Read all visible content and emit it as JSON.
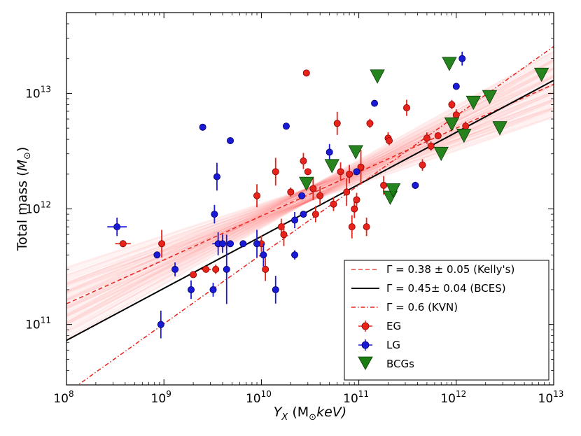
{
  "chart_data": {
    "type": "scatter",
    "xscale": "log",
    "yscale": "log",
    "xlim": [
      100000000.0,
      10000000000000.0
    ],
    "ylim": [
      30000000000.0,
      50000000000000.0
    ],
    "xlabel": "Y_X (M_sun keV)",
    "xlabel_parts": [
      "Y",
      "X",
      " (M",
      "⊙",
      "keV)"
    ],
    "ylabel": "Total mass (M_sun)",
    "ylabel_parts": [
      "Total mass (",
      "M",
      "⊙",
      ")"
    ],
    "x_ticks": [
      {
        "base": "10",
        "exp": "8",
        "value": 100000000.0
      },
      {
        "base": "10",
        "exp": "9",
        "value": 1000000000.0
      },
      {
        "base": "10",
        "exp": "10",
        "value": 10000000000.0
      },
      {
        "base": "10",
        "exp": "11",
        "value": 100000000000.0
      },
      {
        "base": "10",
        "exp": "12",
        "value": 1000000000000.0
      },
      {
        "base": "10",
        "exp": "13",
        "value": 10000000000000.0
      }
    ],
    "y_ticks": [
      {
        "base": "10",
        "exp": "11",
        "value": 100000000000.0
      },
      {
        "base": "10",
        "exp": "12",
        "value": 1000000000000.0
      },
      {
        "base": "10",
        "exp": "13",
        "value": 10000000000000.0
      }
    ],
    "fit_lines": [
      {
        "name": "Kelly's",
        "label": "Γ = 0.38 ± 0.05 (Kelly's)",
        "slope": 0.38,
        "y_at_x1e12": 5000000000000.0,
        "color": "#e8231b",
        "style": "dashed"
      },
      {
        "name": "BCES",
        "label": "Γ =  0.45± 0.04 (BCES)",
        "slope": 0.45,
        "y_at_x1e12": 4600000000000.0,
        "color": "#000000",
        "style": "solid"
      },
      {
        "name": "KVN",
        "label": "Γ =   0.6 (KVN)",
        "slope": 0.6,
        "y_at_x1e12": 6400000000000.0,
        "color": "#e8231b",
        "style": "dashdot"
      }
    ],
    "uncertainty_band": {
      "center_slope": 0.38,
      "center_y_at_x1e12": 5000000000000.0,
      "slope_spread": 0.05,
      "color": "#ff2a2a"
    },
    "series": [
      {
        "name": "EG",
        "marker": "circle",
        "color": "#e8231b",
        "points": [
          {
            "x": 380000000.0,
            "y": 500000000000.0,
            "yerr": 0.03,
            "xerr": 0.08
          },
          {
            "x": 950000000.0,
            "y": 500000000000.0,
            "yerr": 0.12,
            "xerr": 0.03
          },
          {
            "x": 2000000000.0,
            "y": 270000000000.0,
            "yerr": 0.0,
            "xerr": 0.0
          },
          {
            "x": 2700000000.0,
            "y": 300000000000.0,
            "yerr": 0.02,
            "xerr": 0.05
          },
          {
            "x": 3400000000.0,
            "y": 300000000000.0,
            "yerr": 0.04,
            "xerr": 0.0
          },
          {
            "x": 9000000000.0,
            "y": 1300000000000.0,
            "yerr": 0.1,
            "xerr": 0.0
          },
          {
            "x": 10000000000.0,
            "y": 500000000000.0,
            "yerr": 0.07,
            "xerr": 0.0
          },
          {
            "x": 11000000000.0,
            "y": 300000000000.0,
            "yerr": 0.1,
            "xerr": 0.0
          },
          {
            "x": 14000000000.0,
            "y": 2100000000000.0,
            "yerr": 0.12,
            "xerr": 0.0
          },
          {
            "x": 16000000000.0,
            "y": 700000000000.0,
            "yerr": 0.07,
            "xerr": 0.0
          },
          {
            "x": 17000000000.0,
            "y": 600000000000.0,
            "yerr": 0.1,
            "xerr": 0.0
          },
          {
            "x": 20000000000.0,
            "y": 1400000000000.0,
            "yerr": 0.04,
            "xerr": 0.0
          },
          {
            "x": 27000000000.0,
            "y": 2600000000000.0,
            "yerr": 0.07,
            "xerr": 0.0
          },
          {
            "x": 29000000000.0,
            "y": 15000000000000.0,
            "yerr": 0.0,
            "xerr": 0.0
          },
          {
            "x": 30000000000.0,
            "y": 2100000000000.0,
            "yerr": 0.0,
            "xerr": 0.0
          },
          {
            "x": 34000000000.0,
            "y": 1500000000000.0,
            "yerr": 0.1,
            "xerr": 0.0
          },
          {
            "x": 36000000000.0,
            "y": 900000000000.0,
            "yerr": 0.07,
            "xerr": 0.0
          },
          {
            "x": 40000000000.0,
            "y": 1300000000000.0,
            "yerr": 0.08,
            "xerr": 0.0
          },
          {
            "x": 55000000000.0,
            "y": 1100000000000.0,
            "yerr": 0.06,
            "xerr": 0.0
          },
          {
            "x": 60000000000.0,
            "y": 5500000000000.0,
            "yerr": 0.1,
            "xerr": 0.0
          },
          {
            "x": 65000000000.0,
            "y": 2100000000000.0,
            "yerr": 0.08,
            "xerr": 0.0
          },
          {
            "x": 75000000000.0,
            "y": 1400000000000.0,
            "yerr": 0.12,
            "xerr": 0.0
          },
          {
            "x": 80000000000.0,
            "y": 2000000000000.0,
            "yerr": 0.08,
            "xerr": 0.0
          },
          {
            "x": 85000000000.0,
            "y": 700000000000.0,
            "yerr": 0.1,
            "xerr": 0.0
          },
          {
            "x": 90000000000.0,
            "y": 1000000000000.0,
            "yerr": 0.08,
            "xerr": 0.0
          },
          {
            "x": 95000000000.0,
            "y": 1200000000000.0,
            "yerr": 0.06,
            "xerr": 0.0
          },
          {
            "x": 105000000000.0,
            "y": 2300000000000.0,
            "yerr": 0.15,
            "xerr": 0.0
          },
          {
            "x": 120000000000.0,
            "y": 700000000000.0,
            "yerr": 0.08,
            "xerr": 0.0
          },
          {
            "x": 130000000000.0,
            "y": 5500000000000.0,
            "yerr": 0.04,
            "xerr": 0.0
          },
          {
            "x": 180000000000.0,
            "y": 1600000000000.0,
            "yerr": 0.08,
            "xerr": 0.0
          },
          {
            "x": 200000000000.0,
            "y": 4100000000000.0,
            "yerr": 0.05,
            "xerr": 0.0
          },
          {
            "x": 205000000000.0,
            "y": 3900000000000.0,
            "yerr": 0.04,
            "xerr": 0.0
          },
          {
            "x": 310000000000.0,
            "y": 7500000000000.0,
            "yerr": 0.07,
            "xerr": 0.0
          },
          {
            "x": 450000000000.0,
            "y": 2400000000000.0,
            "yerr": 0.05,
            "xerr": 0.0
          },
          {
            "x": 500000000000.0,
            "y": 4100000000000.0,
            "yerr": 0.05,
            "xerr": 0.0
          },
          {
            "x": 550000000000.0,
            "y": 3500000000000.0,
            "yerr": 0.04,
            "xerr": 0.0
          },
          {
            "x": 650000000000.0,
            "y": 4300000000000.0,
            "yerr": 0.0,
            "xerr": 0.0
          },
          {
            "x": 900000000000.0,
            "y": 8000000000000.0,
            "yerr": 0.04,
            "xerr": 0.0
          },
          {
            "x": 1000000000000.0,
            "y": 6500000000000.0,
            "yerr": 0.05,
            "xerr": 0.0
          },
          {
            "x": 1250000000000.0,
            "y": 5200000000000.0,
            "yerr": 0.04,
            "xerr": 0.0
          }
        ]
      },
      {
        "name": "LG",
        "marker": "circle",
        "color": "#1a1ad6",
        "points": [
          {
            "x": 330000000.0,
            "y": 700000000000.0,
            "yerr": 0.08,
            "xerr": 0.1
          },
          {
            "x": 850000000.0,
            "y": 400000000000.0,
            "yerr": 0.0,
            "xerr": 0.0
          },
          {
            "x": 930000000.0,
            "y": 100000000000.0,
            "yerr": 0.12,
            "xerr": 0.0
          },
          {
            "x": 1300000000.0,
            "y": 300000000000.0,
            "yerr": 0.06,
            "xerr": 0.0
          },
          {
            "x": 1900000000.0,
            "y": 200000000000.0,
            "yerr": 0.08,
            "xerr": 0.0
          },
          {
            "x": 2500000000.0,
            "y": 5100000000000.0,
            "yerr": 0.0,
            "xerr": 0.0
          },
          {
            "x": 3200000000.0,
            "y": 200000000000.0,
            "yerr": 0.06,
            "xerr": 0.0
          },
          {
            "x": 3300000000.0,
            "y": 900000000000.0,
            "yerr": 0.08,
            "xerr": 0.0
          },
          {
            "x": 3500000000.0,
            "y": 1900000000000.0,
            "yerr": 0.12,
            "xerr": 0.0
          },
          {
            "x": 3600000000.0,
            "y": 500000000000.0,
            "yerr": 0.1,
            "xerr": 0.06
          },
          {
            "x": 4000000000.0,
            "y": 500000000000.0,
            "yerr": 0.08,
            "xerr": 0.0
          },
          {
            "x": 4400000000.0,
            "y": 300000000000.0,
            "yerr": 0.3,
            "xerr": 0.0
          },
          {
            "x": 4800000000.0,
            "y": 3900000000000.0,
            "yerr": 0.0,
            "xerr": 0.0
          },
          {
            "x": 4800000000.0,
            "y": 500000000000.0,
            "yerr": 0.0,
            "xerr": 0.0
          },
          {
            "x": 6500000000.0,
            "y": 500000000000.0,
            "yerr": 0.0,
            "xerr": 0.0
          },
          {
            "x": 9000000000.0,
            "y": 500000000000.0,
            "yerr": 0.12,
            "xerr": 0.0
          },
          {
            "x": 10500000000.0,
            "y": 400000000000.0,
            "yerr": 0.1,
            "xerr": 0.0
          },
          {
            "x": 14000000000.0,
            "y": 200000000000.0,
            "yerr": 0.12,
            "xerr": 0.0
          },
          {
            "x": 18000000000.0,
            "y": 5200000000000.0,
            "yerr": 0.0,
            "xerr": 0.0
          },
          {
            "x": 22000000000.0,
            "y": 800000000000.0,
            "yerr": 0.07,
            "xerr": 0.0
          },
          {
            "x": 22000000000.0,
            "y": 400000000000.0,
            "yerr": 0.04,
            "xerr": 0.0
          },
          {
            "x": 27000000000.0,
            "y": 900000000000.0,
            "yerr": 0.0,
            "xerr": 0.0
          },
          {
            "x": 26000000000.0,
            "y": 1300000000000.0,
            "yerr": 0.0,
            "xerr": 0.0
          },
          {
            "x": 50000000000.0,
            "y": 3100000000000.0,
            "yerr": 0.07,
            "xerr": 0.0
          },
          {
            "x": 95000000000.0,
            "y": 2100000000000.0,
            "yerr": 0.0,
            "xerr": 0.0
          },
          {
            "x": 145000000000.0,
            "y": 8200000000000.0,
            "yerr": 0.0,
            "xerr": 0.0
          },
          {
            "x": 380000000000.0,
            "y": 1600000000000.0,
            "yerr": 0.03,
            "xerr": 0.0
          },
          {
            "x": 1000000000000.0,
            "y": 11500000000000.0,
            "yerr": 0.0,
            "xerr": 0.0
          },
          {
            "x": 1150000000000.0,
            "y": 20000000000000.0,
            "yerr": 0.06,
            "xerr": 0.0
          }
        ]
      },
      {
        "name": "BCGs",
        "marker": "triangle-down",
        "color": "#1a7d12",
        "points": [
          {
            "x": 29000000000.0,
            "y": 1650000000000.0
          },
          {
            "x": 53000000000.0,
            "y": 2350000000000.0
          },
          {
            "x": 93000000000.0,
            "y": 3100000000000.0
          },
          {
            "x": 155000000000.0,
            "y": 14000000000000.0
          },
          {
            "x": 210000000000.0,
            "y": 1250000000000.0
          },
          {
            "x": 225000000000.0,
            "y": 1450000000000.0
          },
          {
            "x": 700000000000.0,
            "y": 3000000000000.0
          },
          {
            "x": 850000000000.0,
            "y": 18000000000000.0
          },
          {
            "x": 900000000000.0,
            "y": 5400000000000.0
          },
          {
            "x": 1200000000000.0,
            "y": 4300000000000.0
          },
          {
            "x": 1500000000000.0,
            "y": 8300000000000.0
          },
          {
            "x": 2200000000000.0,
            "y": 9300000000000.0
          },
          {
            "x": 2800000000000.0,
            "y": 5000000000000.0
          },
          {
            "x": 7500000000000.0,
            "y": 14500000000000.0
          }
        ]
      }
    ],
    "legend": {
      "placement": "bottom-right",
      "entries": [
        {
          "label": "Γ = 0.38 ± 0.05 (Kelly's)",
          "kind": "line",
          "color": "#e8231b",
          "style": "dashed"
        },
        {
          "label": "Γ =  0.45± 0.04 (BCES)",
          "kind": "line",
          "color": "#000000",
          "style": "solid"
        },
        {
          "label": "Γ =   0.6 (KVN)",
          "kind": "line",
          "color": "#e8231b",
          "style": "dashdot"
        },
        {
          "label": "EG",
          "kind": "errorbar",
          "color": "#e8231b",
          "marker": "circle"
        },
        {
          "label": "LG",
          "kind": "errorbar",
          "color": "#1a1ad6",
          "marker": "circle"
        },
        {
          "label": "BCGs",
          "kind": "marker",
          "color": "#1a7d12",
          "marker": "triangle-down"
        }
      ]
    }
  }
}
